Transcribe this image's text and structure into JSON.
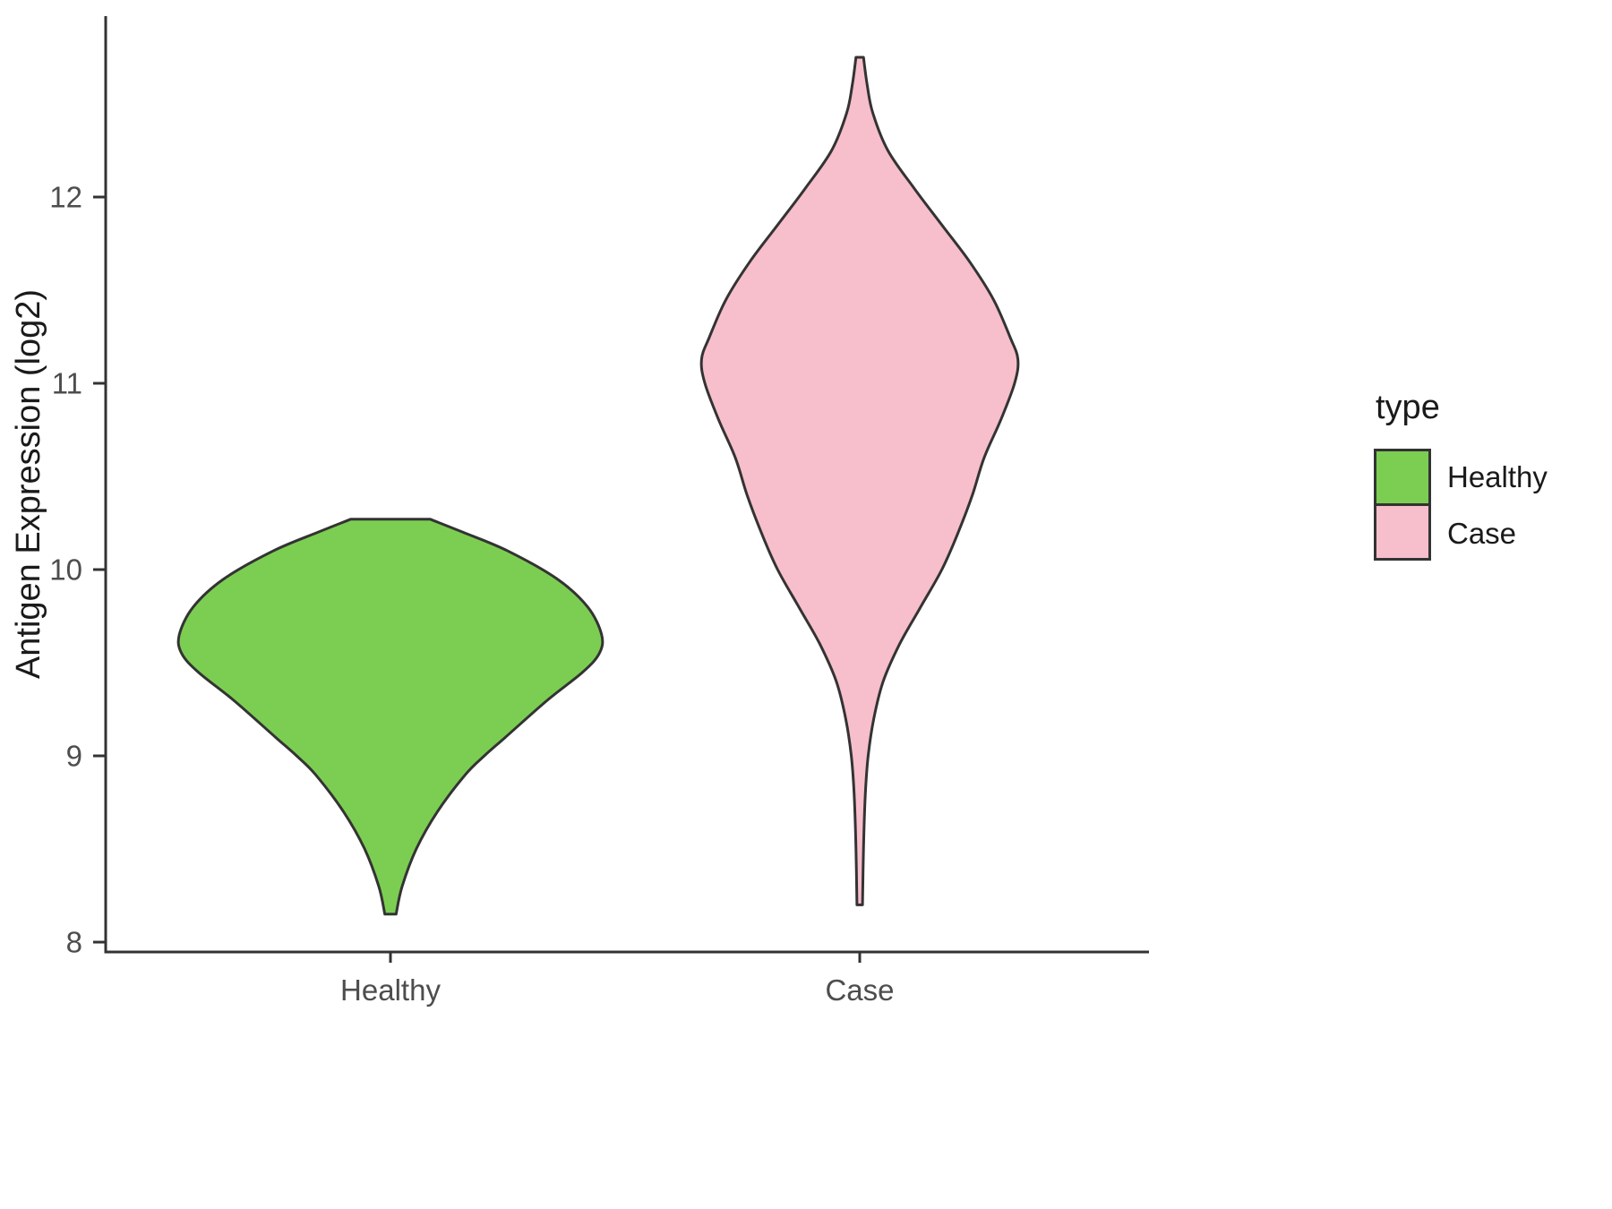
{
  "chart_data": {
    "type": "violin",
    "title": "",
    "xlabel": "",
    "ylabel": "Antigen Expression (log2)",
    "ylim": [
      7.95,
      12.95
    ],
    "yticks": [
      8,
      9,
      10,
      11,
      12
    ],
    "categories": [
      "Healthy",
      "Case"
    ],
    "grid": false,
    "background": "#ffffff",
    "axis_color": "#333333",
    "tick_label_color": "#4d4d4d",
    "axis_title_color": "#1a1a1a",
    "outline_color": "#333333",
    "legend": {
      "title": "type",
      "position": "right",
      "entries": [
        {
          "label": "Healthy",
          "color": "#7cce52"
        },
        {
          "label": "Case",
          "color": "#f7becc"
        }
      ]
    },
    "series": [
      {
        "name": "Healthy",
        "color": "#7cce52",
        "y": [
          8.15,
          8.3,
          8.5,
          8.7,
          8.9,
          9.0,
          9.1,
          9.3,
          9.45,
          9.55,
          9.65,
          9.8,
          9.95,
          10.1,
          10.2,
          10.27
        ],
        "halfwidth": [
          0.012,
          0.025,
          0.055,
          0.1,
          0.16,
          0.2,
          0.245,
          0.335,
          0.41,
          0.445,
          0.45,
          0.42,
          0.355,
          0.25,
          0.155,
          0.085
        ]
      },
      {
        "name": "Case",
        "color": "#f7becc",
        "y": [
          8.2,
          8.5,
          8.8,
          9.0,
          9.2,
          9.4,
          9.6,
          9.8,
          10.0,
          10.2,
          10.4,
          10.6,
          10.8,
          11.0,
          11.13,
          11.25,
          11.45,
          11.65,
          11.85,
          12.05,
          12.25,
          12.45,
          12.6,
          12.75
        ],
        "halfwidth": [
          0.006,
          0.008,
          0.012,
          0.018,
          0.03,
          0.05,
          0.085,
          0.13,
          0.175,
          0.21,
          0.24,
          0.265,
          0.3,
          0.33,
          0.337,
          0.32,
          0.285,
          0.235,
          0.175,
          0.115,
          0.06,
          0.028,
          0.016,
          0.008
        ]
      }
    ]
  }
}
